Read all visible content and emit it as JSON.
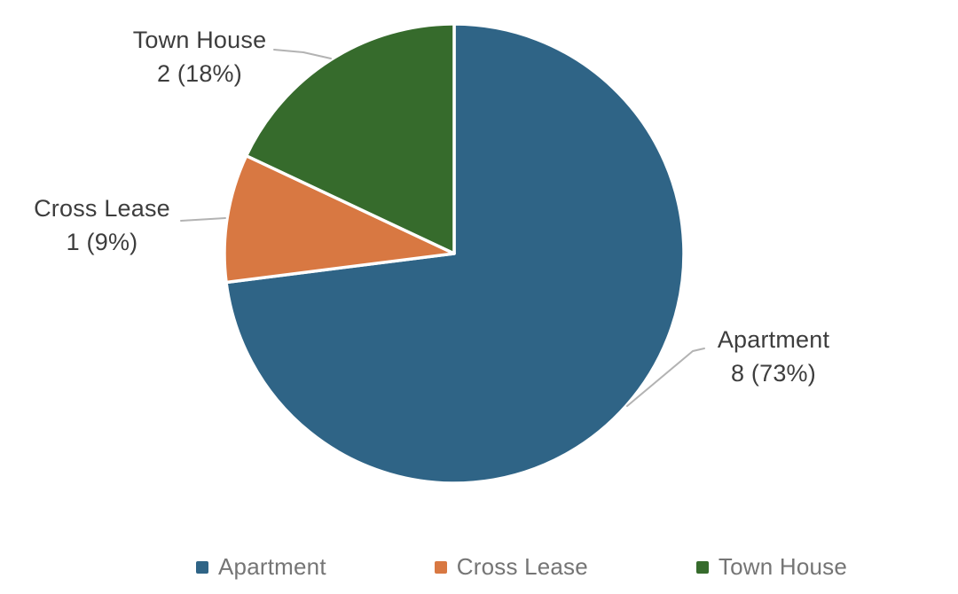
{
  "chart_data": {
    "type": "pie",
    "title": "",
    "direction": "clockwise",
    "start_angle_deg": 0,
    "legend_position": "bottom",
    "slices": [
      {
        "label": "Apartment",
        "value": 8,
        "percent": 73,
        "display": "8 (73%)",
        "color": "#2f6486"
      },
      {
        "label": "Cross Lease",
        "value": 1,
        "percent": 9,
        "display": "1 (9%)",
        "color": "#d87842"
      },
      {
        "label": "Town House",
        "value": 2,
        "percent": 18,
        "display": "2 (18%)",
        "color": "#366b2c"
      }
    ]
  },
  "labels": {
    "apartment": {
      "name": "Apartment",
      "value": "8 (73%)"
    },
    "cross_lease": {
      "name": "Cross Lease",
      "value": "1 (9%)"
    },
    "town_house": {
      "name": "Town House",
      "value": "2 (18%)"
    }
  },
  "legend": {
    "items": [
      {
        "label": "Apartment",
        "color": "#2f6486"
      },
      {
        "label": "Cross Lease",
        "color": "#d87842"
      },
      {
        "label": "Town House",
        "color": "#366b2c"
      }
    ]
  },
  "colors": {
    "label_text": "#3d3d3d",
    "legend_text": "#757575",
    "leader_line": "#b3b3b3",
    "slice_separator": "#ffffff",
    "background": "#ffffff"
  }
}
